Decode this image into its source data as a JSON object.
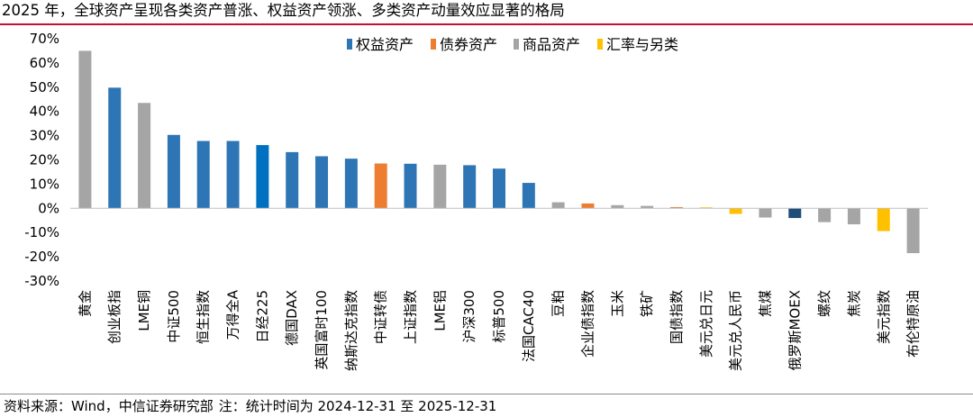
{
  "title": "2025 年，全球资产呈现各类资产普涨、权益资产领涨、多类资产动量效应显著的格局",
  "footer": {
    "source": "资料来源：Wind，中信证券研究部",
    "note": "注：统计时间为 2024-12-31 至 2025-12-31"
  },
  "colors": {
    "equity": "#2e75b6",
    "bond": "#ed7d31",
    "commodity": "#a5a5a5",
    "fx": "#ffc000",
    "equity_dark": "#0070c0",
    "equity_navy": "#1f4e79"
  },
  "chart_data": {
    "type": "bar",
    "title": "",
    "xlabel": "",
    "ylabel": "",
    "ylim": [
      -30,
      70
    ],
    "yticks": [
      70,
      60,
      50,
      40,
      30,
      20,
      10,
      0,
      -10,
      -20,
      -30
    ],
    "ytick_labels": [
      "70%",
      "60%",
      "50%",
      "40%",
      "30%",
      "20%",
      "10%",
      "0%",
      "-10%",
      "-20%",
      "-30%"
    ],
    "value_unit": "%",
    "legend_position": "top-center",
    "legend": [
      {
        "key": "equity",
        "label": "权益资产"
      },
      {
        "key": "bond",
        "label": "债券资产"
      },
      {
        "key": "commodity",
        "label": "商品资产"
      },
      {
        "key": "fx",
        "label": "汇率与另类"
      }
    ],
    "categories": [
      "黄金",
      "创业板指",
      "LME铜",
      "中证500",
      "恒生指数",
      "万得全A",
      "日经225",
      "德国DAX",
      "英国富时100",
      "纳斯达克指数",
      "中证转债",
      "上证指数",
      "LME铝",
      "沪深300",
      "标普500",
      "法国CAC40",
      "豆粕",
      "企业债指数",
      "玉米",
      "铁矿",
      "国债指数",
      "美元兑日元",
      "美元兑人民币",
      "焦煤",
      "俄罗斯MOEX",
      "螺纹",
      "焦炭",
      "美元指数",
      "布伦特原油"
    ],
    "values": [
      65.0,
      49.8,
      43.5,
      30.3,
      27.8,
      27.8,
      26.1,
      23.2,
      21.5,
      20.5,
      18.5,
      18.4,
      18.0,
      17.8,
      16.4,
      10.5,
      2.5,
      2.0,
      1.3,
      1.0,
      0.5,
      0.4,
      -2.3,
      -3.8,
      -4.0,
      -5.7,
      -6.6,
      -9.4,
      -18.5
    ],
    "asset_class": [
      "commodity",
      "equity",
      "commodity",
      "equity",
      "equity",
      "equity",
      "equity_dark",
      "equity",
      "equity",
      "equity",
      "bond",
      "equity",
      "commodity",
      "equity",
      "equity",
      "equity",
      "commodity",
      "bond",
      "commodity",
      "commodity",
      "bond",
      "fx",
      "fx",
      "commodity",
      "equity_navy",
      "commodity",
      "commodity",
      "fx",
      "commodity"
    ]
  }
}
